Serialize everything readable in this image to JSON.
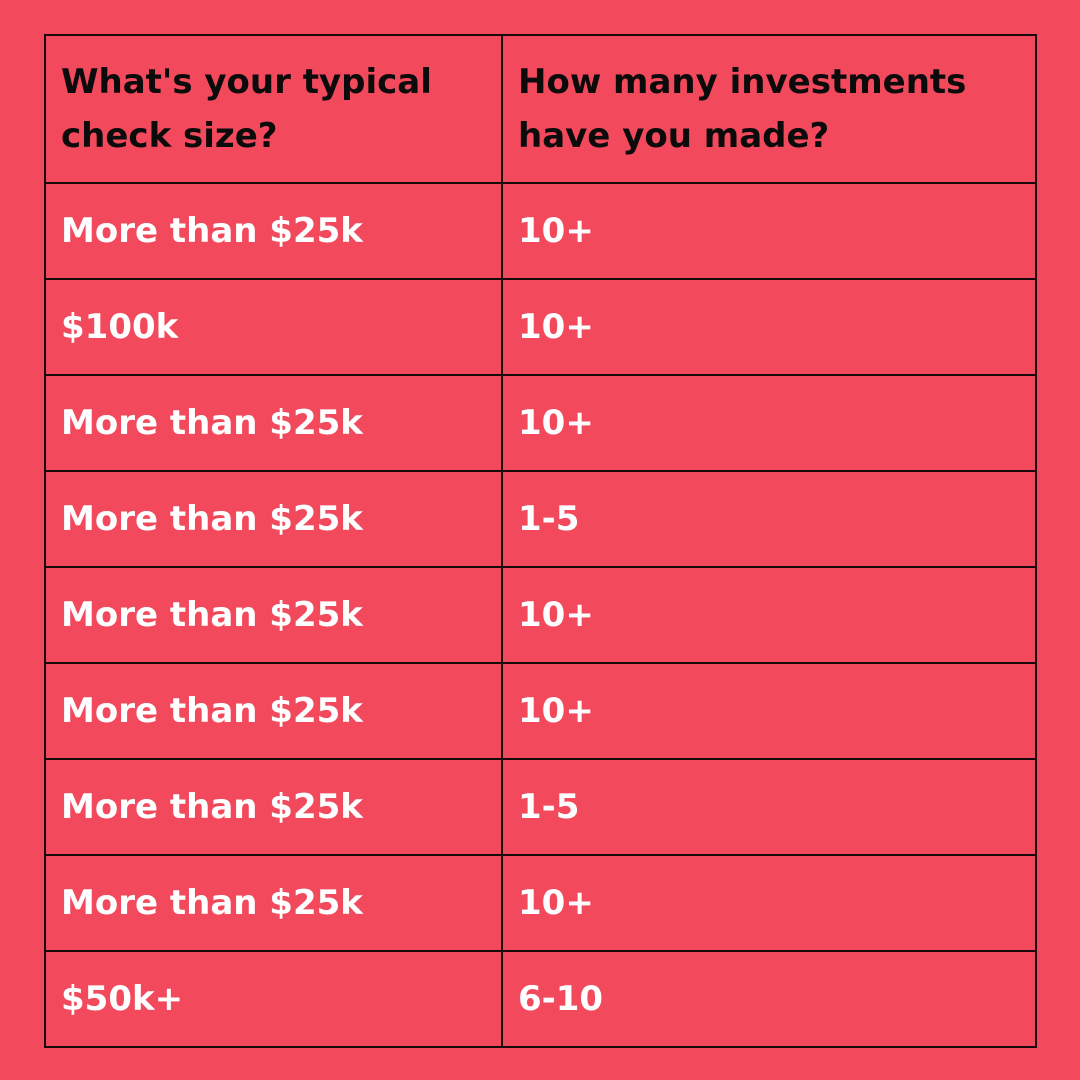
{
  "colors": {
    "background": "#f2495c",
    "header_text": "#0b0b0b",
    "cell_text": "#ffffff",
    "border": "#1a0a0c"
  },
  "table": {
    "headers": [
      "What's your typical check size?",
      "How many investments have you made?"
    ],
    "rows": [
      [
        "More than $25k",
        "10+"
      ],
      [
        "$100k",
        "10+"
      ],
      [
        "More than $25k",
        "10+"
      ],
      [
        "More than $25k",
        "1-5"
      ],
      [
        "More than $25k",
        "10+"
      ],
      [
        "More than $25k",
        "10+"
      ],
      [
        "More than $25k",
        "1-5"
      ],
      [
        "More than $25k",
        "10+"
      ],
      [
        "$50k+",
        "6-10"
      ]
    ]
  }
}
